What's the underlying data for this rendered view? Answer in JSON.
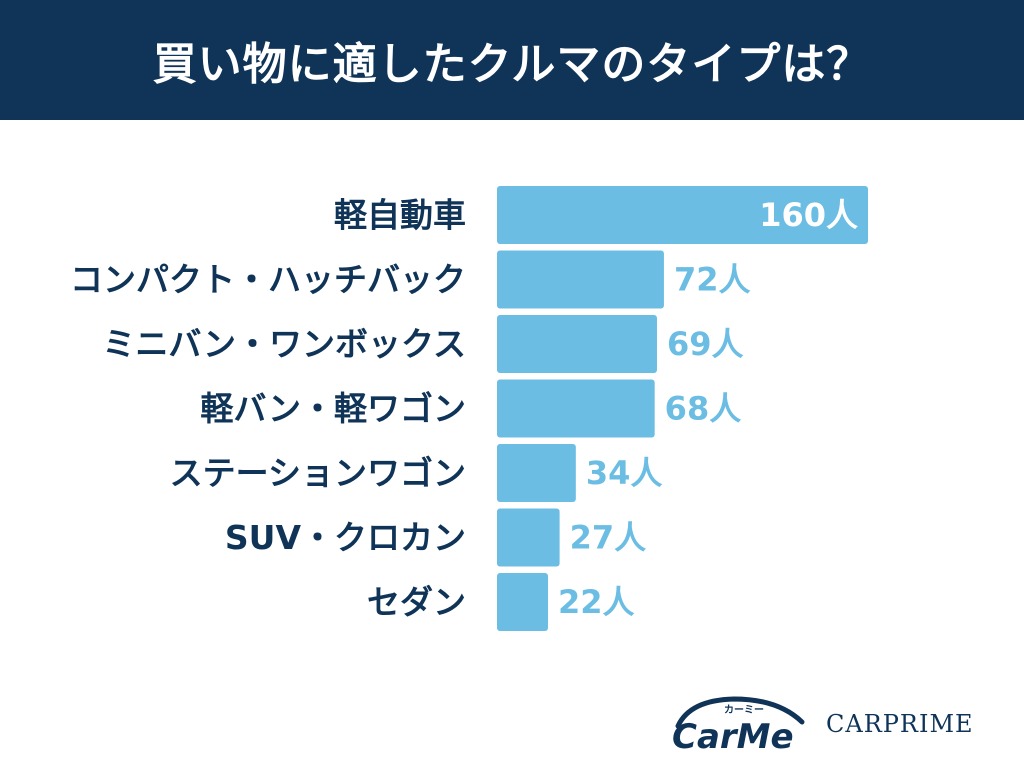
{
  "header": {
    "title": "買い物に適したクルマのタイプは？"
  },
  "colors": {
    "header_bg": "#0f3458",
    "bar": "#6bbde3",
    "label_text": "#0f3458",
    "value_inside": "#ffffff",
    "value_outside": "#6bbde3"
  },
  "chart_data": {
    "type": "bar",
    "orientation": "horizontal",
    "title": "買い物に適したクルマのタイプは？",
    "unit": "人",
    "categories": [
      "軽自動車",
      "コンパクト・ハッチバック",
      "ミニバン・ワンボックス",
      "軽バン・軽ワゴン",
      "ステーションワゴン",
      "SUV・クロカン",
      "セダン"
    ],
    "values": [
      160,
      72,
      69,
      68,
      34,
      27,
      22
    ],
    "value_labels": [
      "160人",
      "72人",
      "69人",
      "68人",
      "34人",
      "27人",
      "22人"
    ],
    "xlim": [
      0,
      160
    ],
    "grid": false,
    "legend": "none"
  },
  "logos": {
    "carme_text": "CarMe",
    "carme_kana": "カーミー",
    "carprime_text": "CARPRIME"
  }
}
